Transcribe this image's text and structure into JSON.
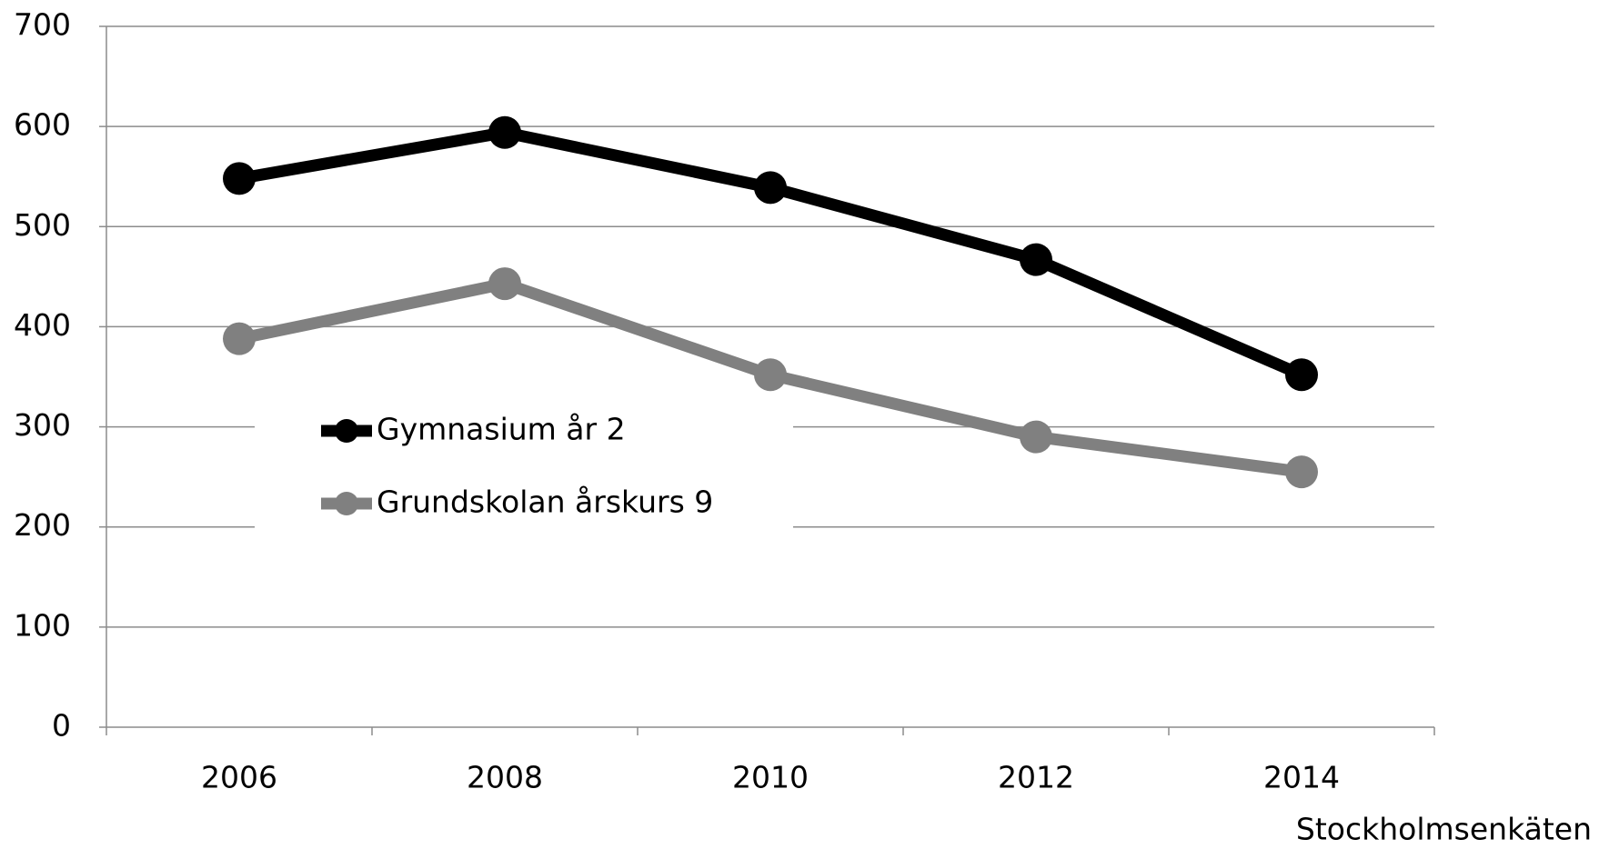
{
  "chart_data": {
    "type": "line",
    "categories": [
      "2006",
      "2008",
      "2010",
      "2012",
      "2014"
    ],
    "series": [
      {
        "name": "Gymnasium år 2",
        "color": "#000000",
        "values": [
          548,
          594,
          539,
          467,
          352
        ]
      },
      {
        "name": "Grundskolan årskurs 9",
        "color": "#808080",
        "values": [
          388,
          443,
          352,
          290,
          255
        ]
      }
    ],
    "ylim": [
      0,
      700
    ],
    "yticks": [
      0,
      100,
      200,
      300,
      400,
      500,
      600,
      700
    ],
    "grid": true,
    "legend": "inside",
    "source": "Stockholmsenkäten"
  }
}
